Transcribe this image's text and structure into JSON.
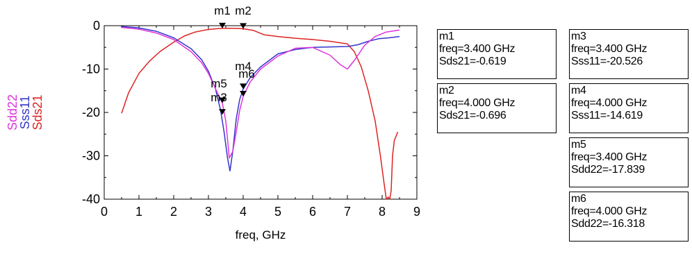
{
  "chart_data": {
    "type": "line",
    "xlabel": "freq, GHz",
    "xlim": [
      0,
      9
    ],
    "ylim": [
      -40,
      0
    ],
    "x_ticks": [
      "0",
      "1",
      "2",
      "3",
      "4",
      "5",
      "6",
      "7",
      "8",
      "9"
    ],
    "y_ticks": [
      "0",
      "-10",
      "-20",
      "-30",
      "-40"
    ],
    "grid": false,
    "series": [
      {
        "name": "Sds21",
        "color": "#dd2222",
        "x": [
          0.5,
          0.7,
          1.0,
          1.3,
          1.6,
          2.0,
          2.3,
          2.6,
          2.9,
          3.1,
          3.3,
          3.4,
          3.6,
          3.8,
          4.0,
          4.3,
          4.6,
          5.0,
          5.5,
          6.0,
          6.5,
          7.0,
          7.2,
          7.4,
          7.6,
          7.8,
          7.95,
          8.05,
          8.12,
          8.18,
          8.22,
          8.26,
          8.3,
          8.35,
          8.45
        ],
        "y": [
          -20.2,
          -15.5,
          -11.0,
          -8.2,
          -6.0,
          -3.8,
          -2.4,
          -1.5,
          -1.0,
          -0.8,
          -0.65,
          -0.62,
          -0.6,
          -0.62,
          -0.7,
          -1.1,
          -2.1,
          -2.5,
          -2.9,
          -3.2,
          -3.6,
          -4.2,
          -6.0,
          -9.5,
          -15.0,
          -22.0,
          -30.0,
          -36.0,
          -40.0,
          -39.5,
          -40.0,
          -38.0,
          -30.0,
          -26.5,
          -24.5
        ]
      },
      {
        "name": "Sss11",
        "color": "#3333cc",
        "x": [
          0.5,
          1.0,
          1.5,
          2.0,
          2.5,
          2.8,
          3.0,
          3.2,
          3.35,
          3.45,
          3.55,
          3.62,
          3.7,
          3.8,
          3.9,
          4.0,
          4.2,
          4.5,
          5.0,
          5.5,
          6.0,
          6.5,
          7.0,
          7.3,
          7.6,
          7.9,
          8.2,
          8.5
        ],
        "y": [
          -0.2,
          -0.5,
          -1.3,
          -2.8,
          -5.3,
          -7.8,
          -10.5,
          -14.5,
          -19.5,
          -24.5,
          -30.5,
          -33.5,
          -29.0,
          -21.5,
          -17.0,
          -14.6,
          -12.0,
          -9.5,
          -6.5,
          -5.5,
          -5.0,
          -4.9,
          -4.8,
          -4.4,
          -3.6,
          -3.0,
          -2.8,
          -2.5
        ]
      },
      {
        "name": "Sdd22",
        "color": "#dd33dd",
        "x": [
          0.5,
          1.0,
          1.5,
          2.0,
          2.5,
          2.8,
          3.0,
          3.2,
          3.4,
          3.5,
          3.6,
          3.7,
          3.8,
          3.9,
          4.0,
          4.2,
          4.5,
          5.0,
          5.5,
          6.0,
          6.5,
          6.8,
          7.0,
          7.2,
          7.5,
          7.8,
          8.1,
          8.5
        ],
        "y": [
          -0.4,
          -0.8,
          -1.7,
          -3.2,
          -6.0,
          -8.5,
          -11.0,
          -14.5,
          -17.8,
          -22.0,
          -30.5,
          -29.0,
          -24.5,
          -19.5,
          -16.3,
          -13.0,
          -10.0,
          -7.0,
          -5.2,
          -5.0,
          -6.8,
          -9.0,
          -10.0,
          -8.0,
          -4.5,
          -2.5,
          -1.5,
          -1.0
        ]
      }
    ],
    "markers": [
      {
        "id": "m1",
        "x": 3.4,
        "y": -0.619,
        "label_x": 3.4,
        "label_y": 2.6
      },
      {
        "id": "m2",
        "x": 4.0,
        "y": -0.696,
        "label_x": 4.0,
        "label_y": 2.6
      },
      {
        "id": "m3",
        "x": 3.4,
        "y": -20.526,
        "label_x": 3.3,
        "label_y": -17.4
      },
      {
        "id": "m4",
        "x": 4.0,
        "y": -14.619,
        "label_x": 4.0,
        "label_y": -10.2
      },
      {
        "id": "m5",
        "x": 3.4,
        "y": -17.839,
        "label_x": 3.3,
        "label_y": -14.2
      },
      {
        "id": "m6",
        "x": 4.0,
        "y": -16.318,
        "label_x": 4.1,
        "label_y": -12.0
      }
    ]
  },
  "marker_readouts": [
    {
      "id": "m1",
      "freq": "freq=3.400 GHz",
      "value": "Sds21=-0.619"
    },
    {
      "id": "m2",
      "freq": "freq=4.000 GHz",
      "value": "Sds21=-0.696"
    },
    {
      "id": "m3",
      "freq": "freq=3.400 GHz",
      "value": "Sss11=-20.526"
    },
    {
      "id": "m4",
      "freq": "freq=4.000 GHz",
      "value": "Sss11=-14.619"
    },
    {
      "id": "m5",
      "freq": "freq=3.400 GHz",
      "value": "Sdd22=-17.839"
    },
    {
      "id": "m6",
      "freq": "freq=4.000 GHz",
      "value": "Sdd22=-16.318"
    }
  ]
}
